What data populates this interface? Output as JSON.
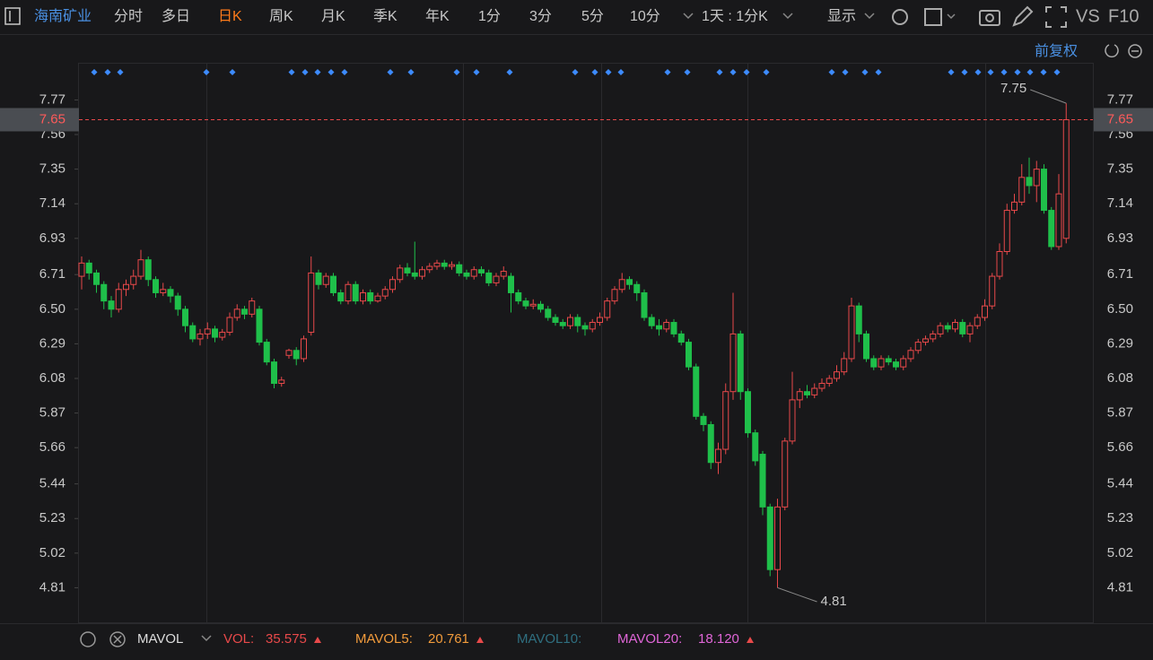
{
  "toolbar": {
    "stock": "海南矿业",
    "tabs": [
      "分时",
      "多日",
      "日K",
      "周K",
      "月K",
      "季K",
      "年K",
      "1分",
      "3分",
      "5分",
      "10分"
    ],
    "active": "日K",
    "period": "1天 : 1分K",
    "display": "显示",
    "vs": "VS",
    "f10": "F10"
  },
  "adjust": "前复权",
  "volume_bar": {
    "indicator": "MAVOL",
    "vol_label": "VOL:",
    "vol_value": "35.575",
    "mavol5_label": "MAVOL5:",
    "mavol5_value": "20.761",
    "mavol10_label": "MAVOL10:",
    "mavol20_label": "MAVOL20:",
    "mavol20_value": "18.120"
  },
  "chart_data": {
    "type": "candlestick",
    "up_color": "#e8494a",
    "down_color": "#1fbf4a",
    "ylim": [
      4.6,
      7.99
    ],
    "yticks": [
      7.77,
      7.56,
      7.35,
      7.14,
      6.93,
      6.71,
      {
        "value": 6.5,
        "label": "6.50"
      },
      6.29,
      6.08,
      5.87,
      5.66,
      5.44,
      5.23,
      5.02,
      4.81
    ],
    "last_price": 7.65,
    "max_label": 7.75,
    "min_label": 4.81,
    "ohlc": [
      [
        6.7,
        6.82,
        6.62,
        6.78
      ],
      [
        6.78,
        6.8,
        6.68,
        6.72
      ],
      [
        6.72,
        6.74,
        6.6,
        6.65
      ],
      [
        6.65,
        6.67,
        6.5,
        6.55
      ],
      [
        6.55,
        6.58,
        6.45,
        6.5
      ],
      [
        6.5,
        6.66,
        6.48,
        6.62
      ],
      [
        6.62,
        6.68,
        6.58,
        6.65
      ],
      [
        6.65,
        6.74,
        6.62,
        6.7
      ],
      [
        6.7,
        6.86,
        6.68,
        6.8
      ],
      [
        6.8,
        6.82,
        6.64,
        6.68
      ],
      [
        6.68,
        6.7,
        6.57,
        6.6
      ],
      [
        6.6,
        6.66,
        6.58,
        6.62
      ],
      [
        6.62,
        6.64,
        6.54,
        6.58
      ],
      [
        6.58,
        6.6,
        6.46,
        6.5
      ],
      [
        6.5,
        6.52,
        6.36,
        6.4
      ],
      [
        6.4,
        6.42,
        6.3,
        6.32
      ],
      [
        6.32,
        6.38,
        6.28,
        6.35
      ],
      [
        6.35,
        6.42,
        6.32,
        6.38
      ],
      [
        6.38,
        6.4,
        6.3,
        6.33
      ],
      [
        6.33,
        6.38,
        6.31,
        6.36
      ],
      [
        6.36,
        6.48,
        6.34,
        6.45
      ],
      [
        6.45,
        6.53,
        6.43,
        6.5
      ],
      [
        6.5,
        6.52,
        6.44,
        6.47
      ],
      [
        6.47,
        6.57,
        6.45,
        6.55
      ],
      [
        6.5,
        6.52,
        6.28,
        6.3
      ],
      [
        6.3,
        6.32,
        6.16,
        6.18
      ],
      [
        6.18,
        6.2,
        6.02,
        6.05
      ],
      [
        6.05,
        6.09,
        6.03,
        6.07
      ],
      [
        6.22,
        6.26,
        6.2,
        6.25
      ],
      [
        6.25,
        6.27,
        6.16,
        6.2
      ],
      [
        6.2,
        6.34,
        6.18,
        6.32
      ],
      [
        6.36,
        6.82,
        6.34,
        6.72
      ],
      [
        6.72,
        6.74,
        6.62,
        6.65
      ],
      [
        6.65,
        6.72,
        6.63,
        6.7
      ],
      [
        6.7,
        6.72,
        6.58,
        6.6
      ],
      [
        6.6,
        6.62,
        6.53,
        6.55
      ],
      [
        6.55,
        6.67,
        6.53,
        6.65
      ],
      [
        6.65,
        6.67,
        6.53,
        6.55
      ],
      [
        6.55,
        6.62,
        6.53,
        6.6
      ],
      [
        6.6,
        6.62,
        6.53,
        6.55
      ],
      [
        6.55,
        6.6,
        6.54,
        6.58
      ],
      [
        6.58,
        6.64,
        6.56,
        6.62
      ],
      [
        6.62,
        6.7,
        6.6,
        6.68
      ],
      [
        6.68,
        6.77,
        6.66,
        6.75
      ],
      [
        6.75,
        6.78,
        6.7,
        6.72
      ],
      [
        6.72,
        6.91,
        6.68,
        6.7
      ],
      [
        6.7,
        6.76,
        6.68,
        6.74
      ],
      [
        6.74,
        6.78,
        6.72,
        6.76
      ],
      [
        6.76,
        6.8,
        6.74,
        6.78
      ],
      [
        6.78,
        6.8,
        6.74,
        6.76
      ],
      [
        6.76,
        6.79,
        6.74,
        6.77
      ],
      [
        6.77,
        6.79,
        6.7,
        6.72
      ],
      [
        6.72,
        6.74,
        6.68,
        6.7
      ],
      [
        6.7,
        6.76,
        6.68,
        6.74
      ],
      [
        6.74,
        6.76,
        6.7,
        6.72
      ],
      [
        6.72,
        6.74,
        6.64,
        6.66
      ],
      [
        6.66,
        6.72,
        6.64,
        6.7
      ],
      [
        6.7,
        6.76,
        6.68,
        6.73
      ],
      [
        6.7,
        6.72,
        6.48,
        6.6
      ],
      [
        6.6,
        6.62,
        6.53,
        6.55
      ],
      [
        6.55,
        6.57,
        6.5,
        6.52
      ],
      [
        6.52,
        6.56,
        6.5,
        6.53
      ],
      [
        6.53,
        6.55,
        6.48,
        6.5
      ],
      [
        6.5,
        6.52,
        6.43,
        6.45
      ],
      [
        6.45,
        6.47,
        6.4,
        6.42
      ],
      [
        6.42,
        6.44,
        6.38,
        6.4
      ],
      [
        6.4,
        6.47,
        6.38,
        6.45
      ],
      [
        6.45,
        6.47,
        6.36,
        6.4
      ],
      [
        6.4,
        6.42,
        6.34,
        6.38
      ],
      [
        6.38,
        6.44,
        6.36,
        6.42
      ],
      [
        6.42,
        6.48,
        6.4,
        6.45
      ],
      [
        6.45,
        6.57,
        6.43,
        6.55
      ],
      [
        6.55,
        6.64,
        6.53,
        6.62
      ],
      [
        6.62,
        6.72,
        6.6,
        6.68
      ],
      [
        6.68,
        6.7,
        6.62,
        6.65
      ],
      [
        6.65,
        6.67,
        6.55,
        6.6
      ],
      [
        6.6,
        6.62,
        6.43,
        6.45
      ],
      [
        6.45,
        6.47,
        6.38,
        6.4
      ],
      [
        6.4,
        6.44,
        6.34,
        6.38
      ],
      [
        6.38,
        6.44,
        6.36,
        6.42
      ],
      [
        6.42,
        6.44,
        6.33,
        6.35
      ],
      [
        6.35,
        6.37,
        6.28,
        6.3
      ],
      [
        6.3,
        6.32,
        6.13,
        6.15
      ],
      [
        6.15,
        6.17,
        5.83,
        5.85
      ],
      [
        5.85,
        5.87,
        5.76,
        5.8
      ],
      [
        5.8,
        5.82,
        5.53,
        5.57
      ],
      [
        5.57,
        5.69,
        5.5,
        5.65
      ],
      [
        5.65,
        6.05,
        5.62,
        6.0
      ],
      [
        6.0,
        6.6,
        5.95,
        6.35
      ],
      [
        6.35,
        6.37,
        5.95,
        6.0
      ],
      [
        6.0,
        6.02,
        5.72,
        5.75
      ],
      [
        5.75,
        5.77,
        5.55,
        5.58
      ],
      [
        5.62,
        5.64,
        5.25,
        5.3
      ],
      [
        5.3,
        5.32,
        4.88,
        4.92
      ],
      [
        4.92,
        5.35,
        4.81,
        5.3
      ],
      [
        5.3,
        5.72,
        5.28,
        5.7
      ],
      [
        5.7,
        6.12,
        5.68,
        5.95
      ],
      [
        5.95,
        6.02,
        5.9,
        6.0
      ],
      [
        6.0,
        6.04,
        5.96,
        5.98
      ],
      [
        5.98,
        6.05,
        5.96,
        6.02
      ],
      [
        6.02,
        6.08,
        6.0,
        6.05
      ],
      [
        6.05,
        6.1,
        6.03,
        6.08
      ],
      [
        6.08,
        6.16,
        6.06,
        6.12
      ],
      [
        6.12,
        6.24,
        6.1,
        6.2
      ],
      [
        6.2,
        6.57,
        6.18,
        6.52
      ],
      [
        6.52,
        6.54,
        6.3,
        6.35
      ],
      [
        6.35,
        6.37,
        6.18,
        6.2
      ],
      [
        6.2,
        6.22,
        6.13,
        6.15
      ],
      [
        6.15,
        6.22,
        6.13,
        6.2
      ],
      [
        6.2,
        6.22,
        6.16,
        6.18
      ],
      [
        6.18,
        6.2,
        6.13,
        6.15
      ],
      [
        6.15,
        6.22,
        6.13,
        6.2
      ],
      [
        6.2,
        6.27,
        6.18,
        6.25
      ],
      [
        6.25,
        6.32,
        6.23,
        6.3
      ],
      [
        6.3,
        6.34,
        6.28,
        6.32
      ],
      [
        6.32,
        6.37,
        6.3,
        6.35
      ],
      [
        6.35,
        6.42,
        6.33,
        6.4
      ],
      [
        6.4,
        6.42,
        6.36,
        6.38
      ],
      [
        6.38,
        6.44,
        6.36,
        6.42
      ],
      [
        6.42,
        6.44,
        6.33,
        6.35
      ],
      [
        6.35,
        6.42,
        6.3,
        6.4
      ],
      [
        6.4,
        6.47,
        6.38,
        6.45
      ],
      [
        6.45,
        6.56,
        6.43,
        6.52
      ],
      [
        6.52,
        6.72,
        6.5,
        6.7
      ],
      [
        6.7,
        6.9,
        6.68,
        6.85
      ],
      [
        6.85,
        7.14,
        6.83,
        7.1
      ],
      [
        7.1,
        7.2,
        7.08,
        7.15
      ],
      [
        7.15,
        7.38,
        7.13,
        7.3
      ],
      [
        7.3,
        7.42,
        7.2,
        7.25
      ],
      [
        7.25,
        7.4,
        7.15,
        7.35
      ],
      [
        7.35,
        7.38,
        7.08,
        7.1
      ],
      [
        7.1,
        7.12,
        6.86,
        6.88
      ],
      [
        6.88,
        7.32,
        6.86,
        7.2
      ],
      [
        6.93,
        7.75,
        6.9,
        7.65
      ]
    ]
  }
}
